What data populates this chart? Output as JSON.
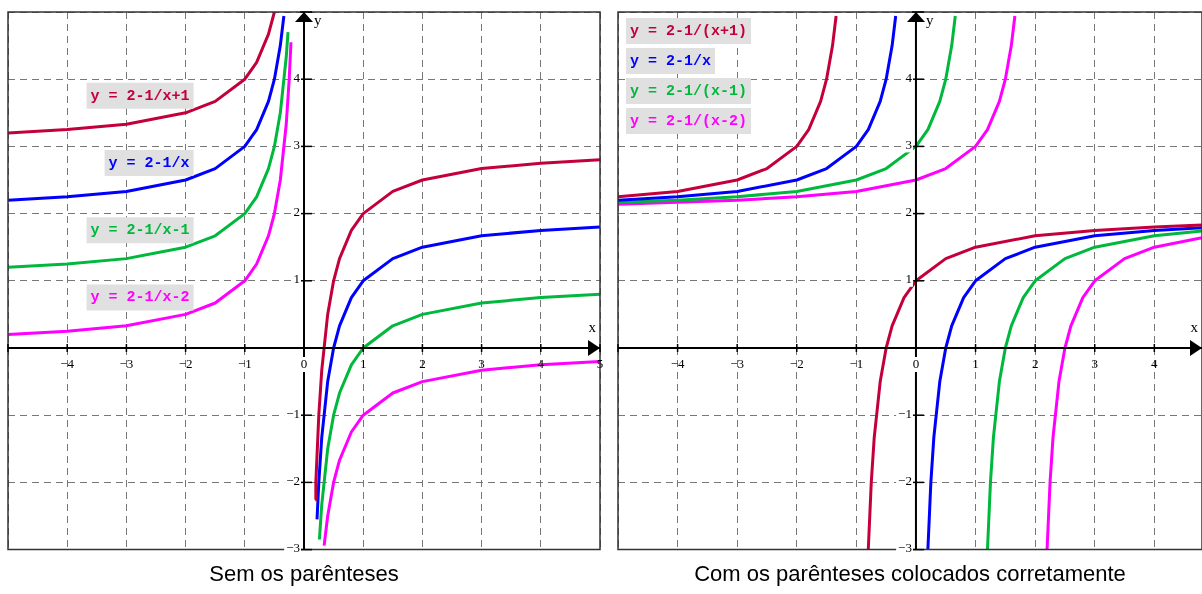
{
  "chart_data": [
    {
      "type": "line",
      "title": "Sem os parênteses",
      "xlabel": "x",
      "ylabel": "y",
      "xlim": [
        -5,
        5
      ],
      "ylim": [
        -3,
        5
      ],
      "xticks": [
        {
          "value": -5,
          "label": null
        },
        {
          "value": -4,
          "label": "−4"
        },
        {
          "value": -3,
          "label": "−3"
        },
        {
          "value": -2,
          "label": "−2"
        },
        {
          "value": -1,
          "label": "−1"
        },
        {
          "value": 0,
          "label": "0"
        },
        1,
        2,
        3,
        4,
        5
      ],
      "yticks": [
        {
          "value": -3,
          "label": "−3"
        },
        {
          "value": -2,
          "label": "−2"
        },
        {
          "value": -1,
          "label": "−1"
        },
        {
          "value": 0,
          "label": null
        },
        1,
        2,
        3,
        4,
        {
          "value": 5,
          "label": null
        }
      ],
      "grid": true,
      "legend": false,
      "marker": "none",
      "series": [
        {
          "name": "y = 2-1/x+1",
          "color": "#c4003c",
          "x": [
            -5,
            -4,
            -3,
            -2,
            -1.5,
            -1,
            -0.8,
            -0.6,
            -0.5,
            0,
            0.19,
            0.2,
            0.25,
            0.3,
            0.4,
            0.5,
            0.6,
            0.8,
            1,
            1.5,
            2,
            3,
            4,
            5
          ],
          "values": [
            3.2,
            3.25,
            3.33,
            3.5,
            3.67,
            4,
            4.25,
            4.67,
            5,
            null,
            -2.26,
            -2,
            -1,
            -0.33,
            0.5,
            1,
            1.33,
            1.75,
            2,
            2.33,
            2.5,
            2.67,
            2.75,
            2.8
          ]
        },
        {
          "name": "y = 2-1/x",
          "color": "#0000ff",
          "x": [
            -5,
            -4,
            -3,
            -2,
            -1.5,
            -1,
            -0.8,
            -0.6,
            -0.5,
            -0.4,
            -0.34,
            0,
            0.22,
            0.25,
            0.3,
            0.4,
            0.5,
            0.6,
            0.8,
            1,
            1.5,
            2,
            3,
            4,
            5
          ],
          "values": [
            2.2,
            2.25,
            2.33,
            2.5,
            2.67,
            3,
            3.25,
            3.67,
            4,
            4.5,
            4.94,
            null,
            -2.55,
            -2,
            -1.33,
            -0.5,
            0,
            0.33,
            0.75,
            1,
            1.33,
            1.5,
            1.67,
            1.75,
            1.8
          ]
        },
        {
          "name": "y = 2-1/x-1",
          "color": "#00b83c",
          "x": [
            -5,
            -4,
            -3,
            -2,
            -1.5,
            -1,
            -0.8,
            -0.6,
            -0.5,
            -0.4,
            -0.3,
            -0.27,
            0,
            0.26,
            0.3,
            0.4,
            0.5,
            0.6,
            0.8,
            1,
            1.5,
            2,
            3,
            4,
            5
          ],
          "values": [
            1.2,
            1.25,
            1.33,
            1.5,
            1.67,
            2,
            2.25,
            2.67,
            3,
            3.5,
            4.33,
            4.7,
            null,
            -2.85,
            -2.33,
            -1.5,
            -1,
            -0.67,
            -0.25,
            0,
            0.33,
            0.5,
            0.67,
            0.75,
            0.8
          ]
        },
        {
          "name": "y = 2-1/x-2",
          "color": "#ff00ff",
          "x": [
            -5,
            -4,
            -3,
            -2,
            -1.5,
            -1,
            -0.8,
            -0.6,
            -0.5,
            -0.4,
            -0.3,
            -0.25,
            -0.22,
            0,
            0.34,
            0.4,
            0.5,
            0.6,
            0.8,
            1,
            1.5,
            2,
            3,
            4,
            5
          ],
          "values": [
            0.2,
            0.25,
            0.33,
            0.5,
            0.67,
            1,
            1.25,
            1.67,
            2,
            2.5,
            3.33,
            4,
            4.55,
            null,
            -2.94,
            -2.5,
            -2,
            -1.67,
            -1.25,
            -1,
            -0.67,
            -0.5,
            -0.33,
            -0.25,
            -0.2
          ]
        }
      ]
    },
    {
      "type": "line",
      "title": "Com os parênteses colocados corretamente",
      "xlabel": "x",
      "ylabel": "y",
      "xlim": [
        -5,
        4.8
      ],
      "ylim": [
        -3,
        5
      ],
      "xticks": [
        {
          "value": -5,
          "label": null
        },
        {
          "value": -4,
          "label": "−4"
        },
        {
          "value": -3,
          "label": "−3"
        },
        {
          "value": -2,
          "label": "−2"
        },
        {
          "value": -1,
          "label": "−1"
        },
        {
          "value": 0,
          "label": "0"
        },
        1,
        2,
        3,
        4
      ],
      "yticks": [
        {
          "value": -3,
          "label": "−3"
        },
        {
          "value": -2,
          "label": "−2"
        },
        {
          "value": -1,
          "label": "−1"
        },
        {
          "value": 0,
          "label": null
        },
        1,
        2,
        3,
        4,
        {
          "value": 5,
          "label": null
        }
      ],
      "grid": true,
      "legend": "top left",
      "marker": "none",
      "series": [
        {
          "name": "y = 2-1/(x+1)",
          "color": "#c4003c",
          "x": [
            -5,
            -4,
            -3,
            -2.5,
            -2,
            -1.8,
            -1.6,
            -1.5,
            -1.4,
            -1.34,
            -1,
            -0.8,
            -0.75,
            -0.7,
            -0.6,
            -0.5,
            -0.4,
            -0.2,
            0,
            0.5,
            1,
            2,
            3,
            4,
            4.8
          ],
          "values": [
            2.25,
            2.33,
            2.5,
            2.67,
            3,
            3.25,
            3.67,
            4,
            4.5,
            4.94,
            null,
            -3,
            -2,
            -1.33,
            -0.5,
            0,
            0.33,
            0.75,
            1,
            1.33,
            1.5,
            1.67,
            1.75,
            1.8,
            1.83
          ]
        },
        {
          "name": "y = 2-1/x",
          "color": "#0000ff",
          "x": [
            -5,
            -4,
            -3,
            -2,
            -1.5,
            -1,
            -0.8,
            -0.6,
            -0.5,
            -0.4,
            -0.34,
            0,
            0.2,
            0.25,
            0.3,
            0.4,
            0.5,
            0.6,
            0.8,
            1,
            1.5,
            2,
            3,
            4,
            4.8
          ],
          "values": [
            2.2,
            2.25,
            2.33,
            2.5,
            2.67,
            3,
            3.25,
            3.67,
            4,
            4.5,
            4.94,
            null,
            -3,
            -2,
            -1.33,
            -0.5,
            0,
            0.33,
            0.75,
            1,
            1.33,
            1.5,
            1.67,
            1.75,
            1.79
          ]
        },
        {
          "name": "y = 2-1/(x-1)",
          "color": "#00b83c",
          "x": [
            -5,
            -4,
            -3,
            -2,
            -1,
            -0.5,
            0,
            0.2,
            0.4,
            0.5,
            0.6,
            0.66,
            1,
            1.2,
            1.25,
            1.3,
            1.4,
            1.5,
            1.6,
            1.8,
            2,
            2.5,
            3,
            4,
            4.8
          ],
          "values": [
            2.17,
            2.2,
            2.25,
            2.33,
            2.5,
            2.67,
            3,
            3.25,
            3.67,
            4,
            4.5,
            4.94,
            null,
            -3,
            -2,
            -1.33,
            -0.5,
            0,
            0.33,
            0.75,
            1,
            1.33,
            1.5,
            1.67,
            1.74
          ]
        },
        {
          "name": "y = 2-1/(x-2)",
          "color": "#ff00ff",
          "x": [
            -5,
            -4,
            -3,
            -2,
            -1,
            0,
            0.5,
            1,
            1.2,
            1.4,
            1.5,
            1.6,
            1.66,
            2,
            2.2,
            2.25,
            2.3,
            2.4,
            2.5,
            2.6,
            2.8,
            3,
            3.5,
            4,
            4.8
          ],
          "values": [
            2.14,
            2.17,
            2.2,
            2.25,
            2.33,
            2.5,
            2.67,
            3,
            3.25,
            3.67,
            4,
            4.5,
            4.94,
            null,
            -3,
            -2,
            -1.33,
            -0.5,
            0,
            0.33,
            0.75,
            1,
            1.33,
            1.5,
            1.64
          ]
        }
      ]
    }
  ]
}
